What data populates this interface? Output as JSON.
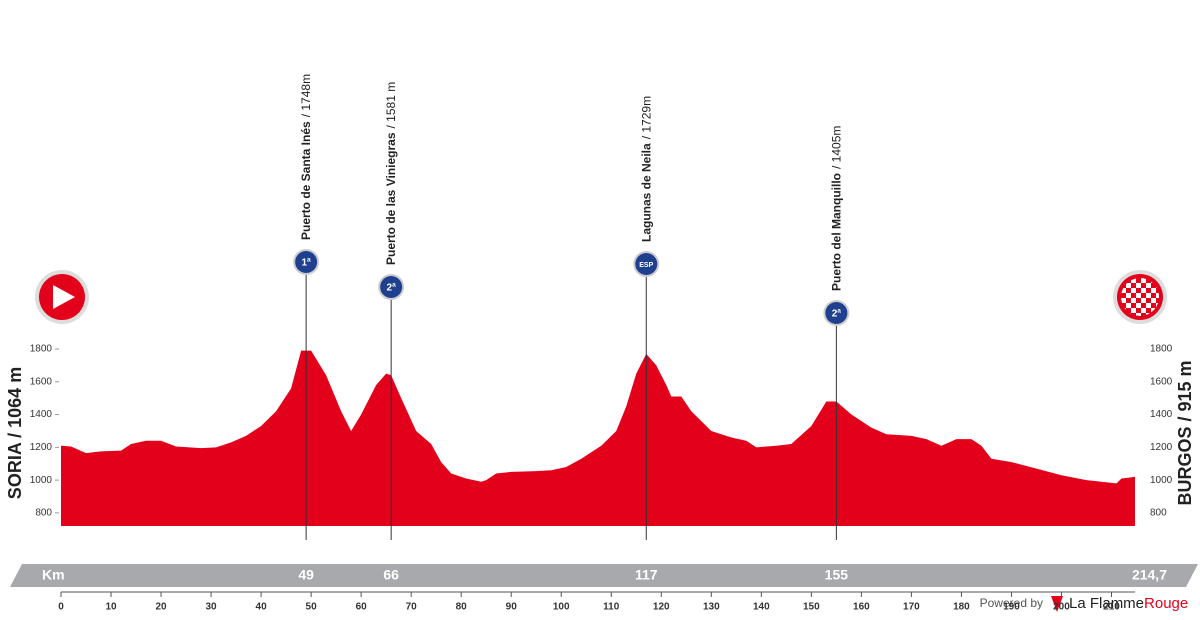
{
  "chart_data": {
    "type": "area",
    "x": [
      0,
      2,
      5,
      8,
      12,
      14,
      17,
      20,
      23,
      28,
      31,
      34,
      37,
      40,
      43,
      46,
      48,
      50,
      53,
      56,
      58,
      60,
      63,
      65,
      66,
      68,
      71,
      74,
      76,
      78,
      81,
      84,
      85,
      87,
      90,
      95,
      98,
      101,
      104,
      108,
      111,
      113,
      115,
      117,
      119,
      121,
      122,
      124,
      126,
      130,
      134,
      137,
      139,
      143,
      146,
      150,
      153,
      155,
      158,
      162,
      165,
      170,
      173,
      176,
      179,
      182,
      184,
      186,
      190,
      195,
      200,
      205,
      211,
      212,
      214.7
    ],
    "values": [
      1210,
      1205,
      1165,
      1175,
      1180,
      1220,
      1240,
      1240,
      1205,
      1195,
      1200,
      1230,
      1270,
      1330,
      1420,
      1560,
      1790,
      1790,
      1640,
      1420,
      1300,
      1400,
      1580,
      1650,
      1640,
      1500,
      1300,
      1220,
      1110,
      1040,
      1010,
      990,
      1000,
      1040,
      1050,
      1055,
      1060,
      1080,
      1130,
      1210,
      1300,
      1450,
      1650,
      1770,
      1700,
      1580,
      1510,
      1510,
      1420,
      1300,
      1260,
      1240,
      1200,
      1210,
      1220,
      1330,
      1480,
      1480,
      1400,
      1320,
      1280,
      1270,
      1250,
      1210,
      1250,
      1250,
      1210,
      1130,
      1110,
      1070,
      1030,
      1000,
      980,
      1010,
      1020
    ],
    "color": "#e3001b",
    "xlim": [
      0,
      214.7
    ],
    "ylim": [
      720,
      1800
    ],
    "xticks": [
      0,
      10,
      20,
      30,
      40,
      50,
      60,
      70,
      80,
      90,
      100,
      110,
      120,
      130,
      140,
      150,
      160,
      170,
      180,
      190,
      200,
      210
    ],
    "yticks": [
      800,
      1000,
      1200,
      1400,
      1600,
      1800
    ],
    "start": "SORIA / 1064 m",
    "finish": "BURGOS / 915 m",
    "x_axis_label": "Km",
    "climbs": [
      {
        "name": "Puerto de Santa Inés",
        "altitude": "/ 1748m",
        "category": "1ª",
        "km": 49
      },
      {
        "name": "Puerto de las Viniegras",
        "altitude": "/ 1581 m",
        "category": "2ª",
        "km": 66
      },
      {
        "name": "Lagunas de Neila",
        "altitude": "/ 1729m",
        "category": "ESP",
        "km": 117
      },
      {
        "name": "Puerto del Manquillo",
        "altitude": "/ 1405m",
        "category": "2ª",
        "km": 155
      }
    ],
    "finish_km": {
      "value": 214.7,
      "label": "214,7"
    }
  },
  "footer": {
    "powered_by": "Powered by",
    "brand_a": "La Flamme",
    "brand_b": "Rouge"
  }
}
